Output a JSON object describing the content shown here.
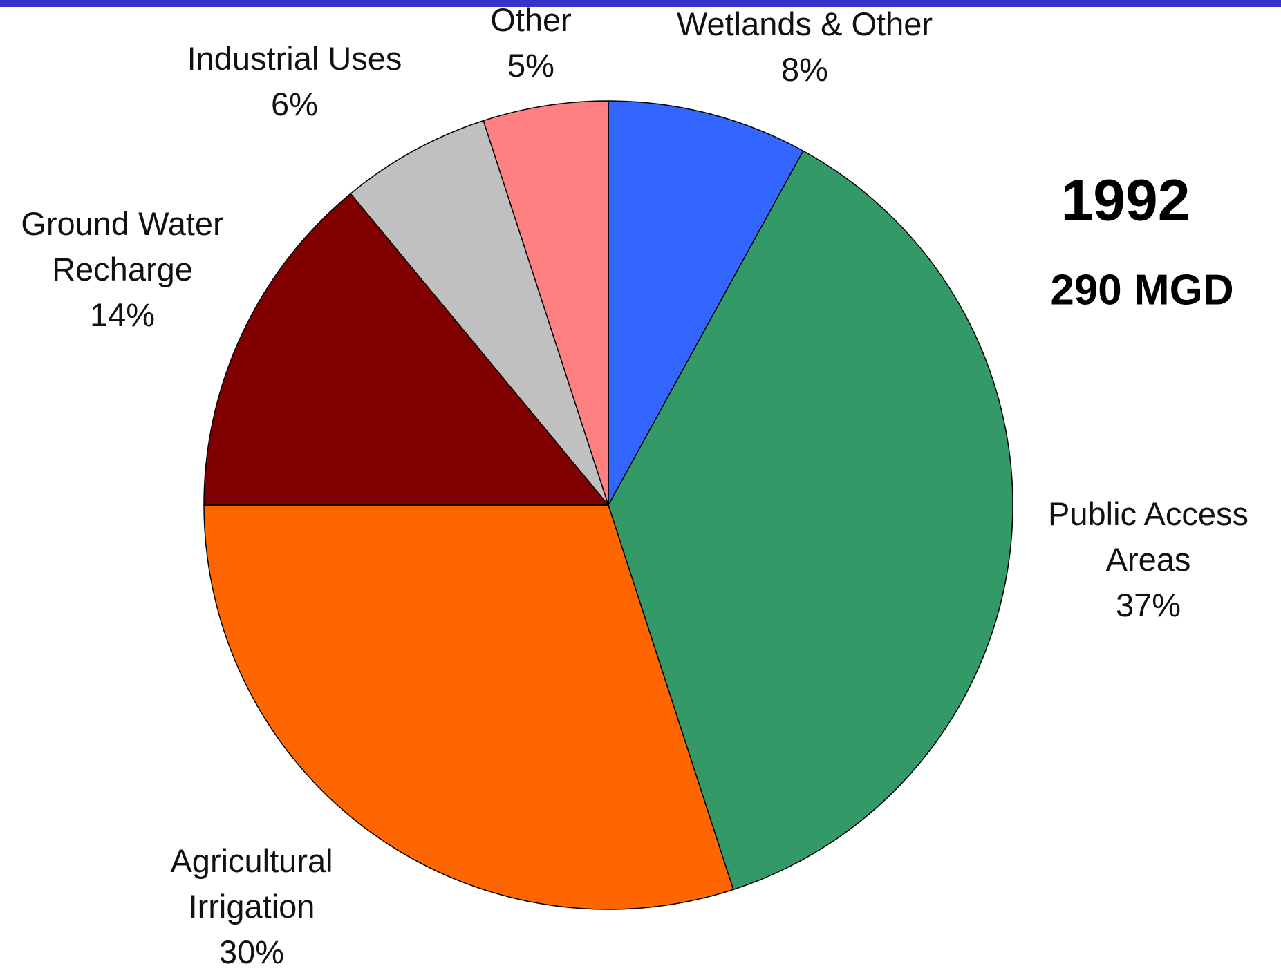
{
  "chart_data": {
    "type": "pie",
    "categories": [
      "Wetlands & Other",
      "Public Access Areas",
      "Agricultural Irrigation",
      "Ground Water Recharge",
      "Industrial Uses",
      "Other"
    ],
    "values": [
      8,
      37,
      30,
      14,
      6,
      5
    ],
    "value_labels": [
      "8%",
      "37%",
      "30%",
      "14%",
      "6%",
      "5%"
    ],
    "colors": [
      "#3366ff",
      "#339966",
      "#ff6600",
      "#800000",
      "#c0c0c0",
      "#ff8080"
    ],
    "annotations": [
      "1992",
      "290 MGD"
    ]
  }
}
